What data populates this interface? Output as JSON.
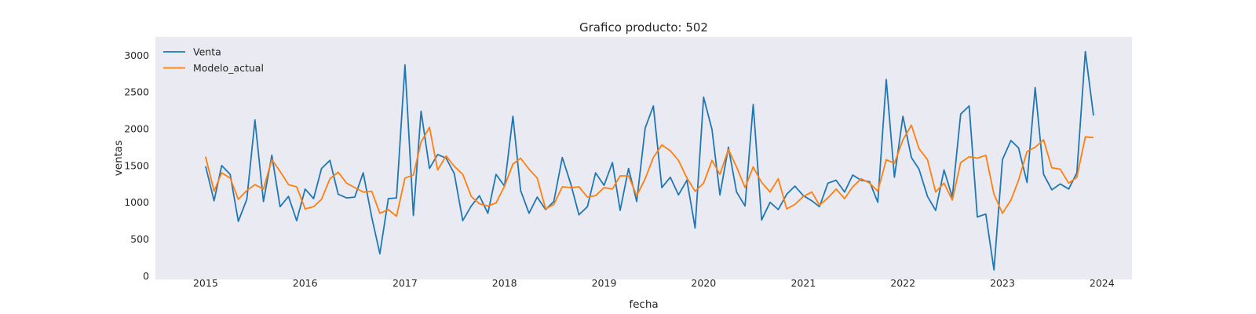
{
  "chart_data": {
    "type": "line",
    "title": "Grafico producto: 502",
    "xlabel": "fecha",
    "ylabel": "ventas",
    "xlim": [
      "2014-07-01",
      "2024-04-20"
    ],
    "ylim": [
      -50,
      3250
    ],
    "x_ticks": [
      "2015",
      "2016",
      "2017",
      "2018",
      "2019",
      "2020",
      "2021",
      "2022",
      "2023",
      "2024"
    ],
    "y_ticks": [
      0,
      500,
      1000,
      1500,
      2000,
      2500,
      3000
    ],
    "grid": false,
    "legend": "top-left",
    "start_month": "2015-01",
    "series": [
      {
        "name": "Venta",
        "color": "#1f77b4",
        "values": [
          1490,
          1020,
          1500,
          1380,
          740,
          1040,
          2120,
          1010,
          1640,
          940,
          1080,
          750,
          1180,
          1050,
          1460,
          1570,
          1110,
          1060,
          1070,
          1400,
          800,
          300,
          1050,
          1060,
          2870,
          820,
          2240,
          1460,
          1650,
          1600,
          1390,
          750,
          950,
          1090,
          850,
          1380,
          1220,
          2170,
          1160,
          850,
          1070,
          900,
          1010,
          1610,
          1250,
          830,
          940,
          1400,
          1230,
          1540,
          890,
          1460,
          1010,
          2010,
          2310,
          1200,
          1340,
          1100,
          1300,
          650,
          2430,
          1990,
          1100,
          1750,
          1140,
          950,
          2330,
          760,
          1000,
          900,
          1110,
          1220,
          1090,
          1020,
          940,
          1260,
          1300,
          1140,
          1370,
          1300,
          1280,
          1000,
          2670,
          1340,
          2170,
          1610,
          1450,
          1080,
          890,
          1440,
          1070,
          2200,
          2310,
          800,
          840,
          80,
          1580,
          1840,
          1740,
          1270,
          2560,
          1380,
          1170,
          1250,
          1180,
          1400,
          3050,
          2180
        ]
      },
      {
        "name": "Modelo_actual",
        "color": "#ff7f0e",
        "values": [
          1620,
          1150,
          1400,
          1330,
          1040,
          1160,
          1240,
          1180,
          1580,
          1420,
          1240,
          1210,
          910,
          940,
          1040,
          1320,
          1410,
          1260,
          1200,
          1140,
          1150,
          850,
          900,
          810,
          1330,
          1370,
          1820,
          2020,
          1440,
          1630,
          1490,
          1380,
          1080,
          980,
          950,
          990,
          1220,
          1520,
          1600,
          1450,
          1330,
          910,
          970,
          1210,
          1200,
          1210,
          1070,
          1090,
          1200,
          1180,
          1360,
          1360,
          1090,
          1320,
          1610,
          1780,
          1700,
          1570,
          1330,
          1150,
          1260,
          1570,
          1380,
          1720,
          1480,
          1200,
          1480,
          1270,
          1140,
          1320,
          910,
          970,
          1080,
          1140,
          960,
          1060,
          1180,
          1050,
          1210,
          1320,
          1260,
          1150,
          1580,
          1530,
          1850,
          2050,
          1730,
          1580,
          1140,
          1260,
          1030,
          1540,
          1620,
          1600,
          1640,
          1110,
          850,
          1030,
          1300,
          1690,
          1750,
          1850,
          1470,
          1450,
          1260,
          1340,
          1890,
          1880
        ]
      }
    ]
  }
}
